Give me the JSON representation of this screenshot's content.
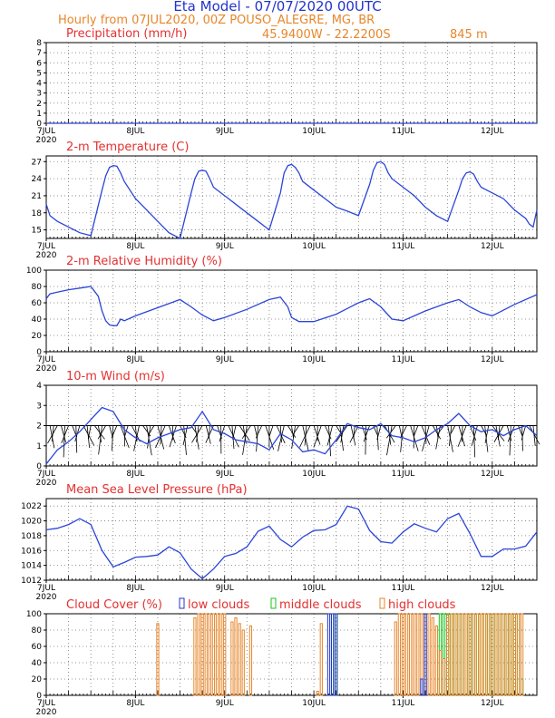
{
  "header": {
    "title": "Eta Model - 07/07/2020 00UTC",
    "subtitle": "Hourly from 07JUL2020, 00Z  POUSO_ALEGRE, MG, BR",
    "coords": "45.9400W - 22.2200S",
    "elevation": "845  m"
  },
  "colors": {
    "title": "#2233cc",
    "subtitle": "#e8862a",
    "panel_title": "#e53030",
    "line": "#2b45d8",
    "low_clouds": "#1f35c8",
    "middle_clouds": "#19c419",
    "high_clouds": "#e8862a"
  },
  "x_axis": {
    "hours_total": 132,
    "day_ticks": [
      {
        "hour": 0,
        "label": "7JUL",
        "sub": "2020"
      },
      {
        "hour": 24,
        "label": "8JUL",
        "sub": ""
      },
      {
        "hour": 48,
        "label": "9JUL",
        "sub": ""
      },
      {
        "hour": 72,
        "label": "10JUL",
        "sub": ""
      },
      {
        "hour": 96,
        "label": "11JUL",
        "sub": ""
      },
      {
        "hour": 120,
        "label": "12JUL",
        "sub": ""
      }
    ]
  },
  "chart_data": [
    {
      "type": "line",
      "title": "Precipitation (mm/h)",
      "ylim": [
        0,
        8
      ],
      "yticks": [
        0,
        1,
        2,
        3,
        4,
        5,
        6,
        7,
        8
      ],
      "x": [
        0,
        132
      ],
      "series": [
        {
          "name": "Precipitation",
          "values": [
            0,
            0
          ]
        }
      ]
    },
    {
      "type": "line",
      "title": "2-m Temperature (C)",
      "ylim": [
        13.5,
        28
      ],
      "yticks": [
        15,
        18,
        21,
        24,
        27
      ],
      "x": [
        0,
        1,
        3,
        6,
        9,
        12,
        15,
        16,
        17,
        18,
        19,
        20,
        21,
        24,
        27,
        30,
        33,
        36,
        39,
        40,
        41,
        42,
        43,
        44,
        45,
        48,
        51,
        54,
        57,
        60,
        63,
        64,
        65,
        66,
        67,
        68,
        69,
        72,
        75,
        78,
        81,
        84,
        87,
        88,
        89,
        90,
        91,
        92,
        93,
        96,
        99,
        102,
        105,
        108,
        111,
        112,
        113,
        114,
        115,
        116,
        117,
        120,
        123,
        126,
        129,
        130,
        131,
        132
      ],
      "series": [
        {
          "name": "Temperature",
          "values": [
            19.5,
            17.5,
            16.5,
            15.5,
            14.5,
            14.0,
            22.0,
            24.5,
            26.0,
            26.3,
            26.2,
            25.0,
            23.5,
            20.5,
            18.5,
            16.5,
            14.5,
            13.5,
            21.5,
            24.0,
            25.3,
            25.5,
            25.3,
            24.0,
            22.5,
            21.0,
            19.5,
            18.0,
            16.5,
            15.0,
            21.5,
            25.0,
            26.3,
            26.5,
            26.0,
            25.0,
            23.5,
            22.0,
            20.5,
            19.0,
            18.3,
            17.5,
            23.0,
            25.5,
            26.8,
            27.0,
            26.5,
            25.0,
            24.0,
            22.5,
            21.0,
            19.0,
            17.5,
            16.5,
            22.0,
            24.0,
            25.0,
            25.2,
            24.8,
            23.5,
            22.5,
            21.5,
            20.5,
            18.5,
            17.0,
            16.0,
            15.5,
            18.5
          ]
        }
      ]
    },
    {
      "type": "line",
      "title": "2-m Relative Humidity (%)",
      "ylim": [
        0,
        100
      ],
      "yticks": [
        0,
        20,
        40,
        60,
        80,
        100
      ],
      "x": [
        0,
        1,
        3,
        6,
        9,
        12,
        14,
        15,
        16,
        17,
        18,
        19,
        20,
        21,
        24,
        30,
        36,
        39,
        42,
        45,
        48,
        54,
        60,
        63,
        65,
        66,
        68,
        72,
        78,
        84,
        87,
        90,
        92,
        93,
        96,
        102,
        108,
        111,
        114,
        117,
        120,
        126,
        132
      ],
      "series": [
        {
          "name": "Humidity",
          "values": [
            65,
            71,
            73,
            76,
            78,
            80,
            68,
            50,
            38,
            33,
            32,
            32,
            40,
            38,
            44,
            54,
            64,
            55,
            45,
            38,
            42,
            52,
            64,
            67,
            55,
            42,
            37,
            37,
            46,
            60,
            65,
            55,
            45,
            40,
            38,
            50,
            60,
            64,
            55,
            48,
            44,
            58,
            70
          ]
        }
      ]
    },
    {
      "type": "line",
      "title": "10-m Wind (m/s)",
      "ylim": [
        0,
        4
      ],
      "yticks": [
        0,
        1,
        2,
        3,
        4
      ],
      "x": [
        0,
        3,
        6,
        9,
        12,
        15,
        18,
        21,
        24,
        27,
        30,
        33,
        36,
        39,
        42,
        45,
        48,
        51,
        54,
        57,
        60,
        63,
        66,
        69,
        72,
        75,
        78,
        81,
        84,
        87,
        90,
        93,
        96,
        99,
        102,
        105,
        108,
        111,
        114,
        117,
        120,
        123,
        126,
        129,
        132
      ],
      "series": [
        {
          "name": "Wind speed",
          "values": [
            0.1,
            0.8,
            1.2,
            1.7,
            2.3,
            2.9,
            2.7,
            1.8,
            1.4,
            1.1,
            1.4,
            1.6,
            1.8,
            1.9,
            2.7,
            1.8,
            1.6,
            1.3,
            1.2,
            1.1,
            0.8,
            1.6,
            1.3,
            0.7,
            0.8,
            0.6,
            1.3,
            2.1,
            1.9,
            1.8,
            2.1,
            1.5,
            1.4,
            1.2,
            1.4,
            1.8,
            2.1,
            2.6,
            2.0,
            1.7,
            1.8,
            1.5,
            1.8,
            2.0,
            1.5
          ]
        }
      ]
    },
    {
      "type": "line",
      "title": "Mean Sea Level Pressure (hPa)",
      "ylim": [
        1012,
        1023
      ],
      "yticks": [
        1012,
        1014,
        1016,
        1018,
        1020,
        1022
      ],
      "x": [
        0,
        3,
        6,
        9,
        12,
        15,
        18,
        21,
        24,
        27,
        30,
        33,
        36,
        39,
        42,
        45,
        48,
        51,
        54,
        57,
        60,
        63,
        66,
        69,
        72,
        75,
        78,
        81,
        84,
        87,
        90,
        93,
        96,
        99,
        102,
        105,
        108,
        111,
        114,
        117,
        120,
        123,
        126,
        129,
        132
      ],
      "series": [
        {
          "name": "Pressure",
          "values": [
            1018.8,
            1019.0,
            1019.5,
            1020.3,
            1019.5,
            1016.0,
            1013.8,
            1014.4,
            1015.1,
            1015.2,
            1015.4,
            1016.5,
            1015.7,
            1013.5,
            1012.2,
            1013.5,
            1015.2,
            1015.6,
            1016.5,
            1018.6,
            1019.3,
            1017.5,
            1016.5,
            1017.8,
            1018.7,
            1018.8,
            1019.5,
            1022.0,
            1021.6,
            1018.7,
            1017.2,
            1017.0,
            1018.5,
            1019.6,
            1019.0,
            1018.5,
            1020.3,
            1021.0,
            1018.3,
            1015.2,
            1015.2,
            1016.2,
            1016.2,
            1016.6,
            1018.5
          ]
        }
      ]
    },
    {
      "type": "bar",
      "title": "Cloud Cover (%)",
      "ylim": [
        0,
        100
      ],
      "yticks": [
        0,
        20,
        40,
        60,
        80,
        100
      ],
      "legend": [
        "low clouds",
        "middle clouds",
        "high clouds"
      ],
      "series": [
        {
          "name": "low clouds",
          "x": [
            76,
            77,
            78,
            101,
            102
          ],
          "values": [
            100,
            100,
            100,
            20,
            100
          ]
        },
        {
          "name": "middle clouds",
          "x": [
            77,
            78,
            106,
            107,
            108,
            109,
            110,
            111,
            112,
            113,
            114,
            115,
            116,
            117,
            118,
            119,
            120,
            121,
            122,
            123,
            124,
            125,
            126,
            127,
            128
          ],
          "values": [
            100,
            100,
            100,
            100,
            100,
            100,
            100,
            100,
            100,
            100,
            100,
            100,
            100,
            100,
            100,
            100,
            100,
            100,
            100,
            100,
            100,
            100,
            100,
            100,
            20
          ]
        },
        {
          "name": "high clouds",
          "x": [
            30,
            40,
            41,
            42,
            43,
            44,
            45,
            46,
            47,
            48,
            50,
            51,
            52,
            53,
            55,
            73,
            74,
            94,
            95,
            96,
            97,
            98,
            99,
            100,
            101,
            102,
            103,
            104,
            105,
            106,
            107,
            108,
            109,
            110,
            111,
            112,
            113,
            114,
            115,
            116,
            117,
            118,
            119,
            120,
            121,
            122,
            123,
            124,
            125,
            126,
            127,
            128
          ],
          "values": [
            88,
            95,
            100,
            100,
            100,
            100,
            100,
            100,
            100,
            100,
            90,
            95,
            88,
            80,
            85,
            5,
            88,
            90,
            100,
            100,
            100,
            100,
            100,
            100,
            100,
            100,
            100,
            95,
            85,
            55,
            45,
            98,
            100,
            100,
            100,
            100,
            100,
            100,
            100,
            100,
            100,
            100,
            100,
            100,
            100,
            100,
            100,
            100,
            100,
            100,
            100,
            100
          ]
        }
      ]
    }
  ]
}
